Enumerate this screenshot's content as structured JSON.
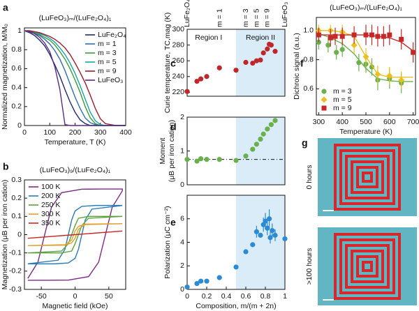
{
  "chart_data": [
    {
      "type": "line",
      "panel": "a",
      "title": "(LuFeO₃)ₘ/(LuFe₂O₄)₁",
      "xlabel": "Temperature, T (K)",
      "ylabel": "Normalized magnetization, M/M₀",
      "xlim": [
        0,
        400
      ],
      "xticks": [
        0,
        100,
        200,
        300,
        400
      ],
      "ylim": [
        0,
        1.03
      ],
      "yticks": [
        0,
        0.2,
        0.4,
        0.6,
        0.8,
        1
      ],
      "legend": "upper right",
      "x": [
        0,
        20,
        40,
        60,
        80,
        100,
        120,
        140,
        160,
        180,
        200,
        220,
        240,
        260,
        280,
        300,
        320,
        340,
        360,
        380,
        400
      ],
      "series": [
        {
          "name": "LuFe₂O₄",
          "color": "#1f2a6b",
          "values": [
            1,
            0.98,
            0.95,
            0.9,
            0.84,
            0.75,
            0.64,
            0.52,
            0.38,
            0.25,
            0.14,
            0.06,
            0.02,
            0,
            0,
            0,
            0,
            0,
            0,
            0,
            0
          ]
        },
        {
          "name": "m = 1",
          "color": "#2e6db4",
          "values": [
            1,
            0.99,
            0.97,
            0.95,
            0.91,
            0.86,
            0.79,
            0.7,
            0.58,
            0.44,
            0.3,
            0.18,
            0.08,
            0.03,
            0.01,
            0,
            0,
            0,
            0,
            0,
            0
          ]
        },
        {
          "name": "m = 3",
          "color": "#3a9a3a",
          "values": [
            1,
            0.99,
            0.98,
            0.96,
            0.93,
            0.9,
            0.85,
            0.78,
            0.7,
            0.6,
            0.48,
            0.35,
            0.2,
            0.08,
            0.02,
            0,
            0,
            0,
            0,
            0,
            0
          ]
        },
        {
          "name": "m = 5",
          "color": "#1aa3a3",
          "values": [
            1,
            1,
            0.99,
            0.97,
            0.95,
            0.92,
            0.88,
            0.82,
            0.75,
            0.66,
            0.55,
            0.42,
            0.28,
            0.14,
            0.05,
            0.01,
            0,
            0,
            0,
            0,
            0
          ]
        },
        {
          "name": "m = 9",
          "color": "#9e1b2a",
          "values": [
            1,
            1,
            0.99,
            0.98,
            0.96,
            0.94,
            0.91,
            0.87,
            0.82,
            0.75,
            0.66,
            0.56,
            0.45,
            0.32,
            0.18,
            0.07,
            0.02,
            0.01,
            0,
            0,
            0
          ]
        },
        {
          "name": "LuFeO₃",
          "color": "#5b2a86",
          "values": [
            1,
            0.99,
            0.97,
            0.93,
            0.87,
            0.78,
            0.62,
            0.38,
            0.01,
            0,
            0,
            0,
            0,
            0,
            0,
            0,
            0,
            0,
            0,
            0,
            0
          ]
        }
      ]
    },
    {
      "type": "line",
      "panel": "b",
      "title": "(LuFeO₃)₉/(LuFe₂O₄)₁",
      "xlabel": "Magnetic field (kOe)",
      "ylabel": "Magnetization (μB per iron cation)",
      "xlim": [
        -75,
        75
      ],
      "xticks": [
        -50,
        0,
        50
      ],
      "ylim": [
        -0.3,
        0.3
      ],
      "yticks": [
        -0.3,
        -0.2,
        -0.1,
        0,
        0.1,
        0.2,
        0.3
      ],
      "legend": "upper left",
      "series": [
        {
          "name": "100 K",
          "color": "#7b2a86",
          "x": [
            -70,
            -40,
            -10,
            20,
            35,
            45,
            55,
            70,
            70,
            40,
            10,
            -20,
            -35,
            -45,
            -55,
            -70
          ],
          "values": [
            -0.25,
            -0.25,
            -0.249,
            -0.23,
            -0.15,
            0,
            0.15,
            0.24,
            0.25,
            0.25,
            0.249,
            0.23,
            0.15,
            0,
            -0.15,
            -0.24
          ]
        },
        {
          "name": "200 K",
          "color": "#2a7ab8",
          "x": [
            -70,
            -30,
            -10,
            0,
            5,
            10,
            15,
            25,
            70,
            70,
            30,
            10,
            0,
            -5,
            -10,
            -15,
            -25,
            -70
          ],
          "values": [
            -0.16,
            -0.16,
            -0.155,
            -0.13,
            -0.08,
            0,
            0.08,
            0.14,
            0.16,
            0.16,
            0.16,
            0.155,
            0.13,
            0.08,
            0,
            -0.08,
            -0.14,
            -0.16
          ]
        },
        {
          "name": "250 K",
          "color": "#5aa33a",
          "x": [
            -70,
            -20,
            -5,
            0,
            5,
            10,
            20,
            70,
            70,
            20,
            5,
            0,
            -5,
            -10,
            -20,
            -70
          ],
          "values": [
            -0.1,
            -0.1,
            -0.09,
            -0.05,
            0,
            0.05,
            0.09,
            0.1,
            0.1,
            0.1,
            0.09,
            0.05,
            0,
            -0.05,
            -0.09,
            -0.1
          ]
        },
        {
          "name": "300 K",
          "color": "#e0a030",
          "x": [
            -70,
            -15,
            -5,
            0,
            2,
            5,
            15,
            70,
            70,
            15,
            5,
            0,
            -2,
            -5,
            -15,
            -70
          ],
          "values": [
            -0.06,
            -0.058,
            -0.045,
            -0.02,
            0,
            0.03,
            0.055,
            0.06,
            0.06,
            0.058,
            0.045,
            0.02,
            0,
            -0.03,
            -0.055,
            -0.06
          ]
        },
        {
          "name": "350 K",
          "color": "#c62828",
          "x": [
            -70,
            0,
            70,
            0,
            -70
          ],
          "values": [
            -0.02,
            0,
            0.02,
            0,
            -0.02
          ]
        }
      ]
    },
    {
      "type": "scatter",
      "panel": "c",
      "ylabel": "Curie temperature, TC,mag (K)",
      "color": "#c0272d",
      "xlim": [
        0,
        1
      ],
      "ylim": [
        215,
        300
      ],
      "yticks": [
        220,
        240,
        260,
        280,
        300
      ],
      "shade": [
        0.5,
        1
      ],
      "top_labels": [
        {
          "text": "LuFe₂O₄",
          "x": 0
        },
        {
          "text": "m = 1",
          "x": 0.333
        },
        {
          "text": "m = 3",
          "x": 0.6
        },
        {
          "text": "m = 5",
          "x": 0.714
        },
        {
          "text": "m = 9",
          "x": 0.818
        },
        {
          "text": "LuFeO₃",
          "x": 1
        }
      ],
      "regions": [
        {
          "text": "Region I",
          "x": 0.22
        },
        {
          "text": "Region II",
          "x": 0.75
        }
      ],
      "series": [
        {
          "x": [
            0,
            0.1,
            0.14,
            0.2,
            0.33,
            0.5,
            0.6,
            0.67,
            0.71,
            0.75,
            0.78,
            0.82,
            0.84,
            0.86,
            0.9
          ],
          "values": [
            221,
            234,
            237,
            240,
            251,
            248,
            258,
            257,
            260,
            261,
            270,
            275,
            281,
            280,
            272
          ]
        }
      ]
    },
    {
      "type": "scatter",
      "panel": "d",
      "ylabel": [
        "Moment",
        "(μB per iron cation)"
      ],
      "color": "#6ab04c",
      "xlim": [
        0,
        1
      ],
      "ylim": [
        0,
        2
      ],
      "yticks": [
        0,
        1,
        2
      ],
      "shade": [
        0.5,
        1
      ],
      "hline": 0.75,
      "series": [
        {
          "x": [
            0,
            0.1,
            0.14,
            0.2,
            0.33,
            0.5,
            0.6,
            0.67,
            0.71,
            0.75,
            0.78,
            0.82,
            0.86,
            0.9
          ],
          "values": [
            0.75,
            0.7,
            0.77,
            0.75,
            0.75,
            0.72,
            0.85,
            1.05,
            1.2,
            1.35,
            1.5,
            1.65,
            1.78,
            1.9
          ]
        }
      ]
    },
    {
      "type": "scatter",
      "panel": "e",
      "xlabel": "Composition, m/(m + 2n)",
      "ylabel": "Polarization (μC cm⁻²)",
      "color": "#2a8ad4",
      "xlim": [
        0,
        1
      ],
      "xticks": [
        0,
        0.2,
        0.4,
        0.6,
        0.8,
        1
      ],
      "ylim": [
        0,
        8
      ],
      "yticks": [
        0,
        2,
        4,
        6
      ],
      "shade": [
        0.5,
        1
      ],
      "series": [
        {
          "x": [
            0,
            0.1,
            0.14,
            0.2,
            0.33,
            0.5,
            0.6,
            0.67,
            0.71,
            0.75,
            0.78,
            0.8,
            0.82,
            0.84,
            0.85,
            0.87,
            0.9,
            1
          ],
          "values": [
            0.2,
            0.5,
            0.7,
            0.7,
            1,
            1.9,
            3.2,
            3.8,
            4.9,
            4.6,
            5.5,
            5.8,
            5.2,
            6,
            4.4,
            5,
            4.6,
            4.3
          ],
          "errors": [
            null,
            null,
            null,
            null,
            null,
            null,
            null,
            null,
            0.5,
            null,
            0.6,
            0.7,
            0.6,
            0.8,
            0.5,
            0.6,
            0.5,
            null
          ]
        }
      ]
    },
    {
      "type": "scatter",
      "panel": "f",
      "title": "(LuFeO₃)ₘ/(LuFe₂O₄)₁",
      "xlabel": "Temperature (K)",
      "ylabel": "Dichroic signal (a.u.)",
      "xlim": [
        290,
        710
      ],
      "xticks": [
        300,
        400,
        500,
        600,
        700
      ],
      "ylim": [
        0.42,
        1.09
      ],
      "yticks": [
        0.6,
        0.8,
        {
          "value": 1,
          "label": "1.0"
        }
      ],
      "legend": "lower left",
      "series": [
        {
          "name": "m = 3",
          "color": "#6ab04c",
          "marker": "circle",
          "x": [
            300,
            340,
            375,
            400,
            470,
            500,
            525,
            550,
            600,
            650
          ],
          "values": [
            0.92,
            0.9,
            0.85,
            0.87,
            0.78,
            0.77,
            0.75,
            0.66,
            0.67,
            0.64
          ],
          "errors": [
            0.05,
            0.05,
            0.05,
            0.05,
            0.06,
            0.06,
            0.06,
            0.07,
            0.07,
            0.07
          ],
          "fit": {
            "x": [
              300,
              350,
              400,
              450,
              500,
              550,
              600,
              650,
              700
            ],
            "values": [
              0.98,
              0.95,
              0.91,
              0.84,
              0.74,
              0.67,
              0.655,
              0.65,
              0.65
            ]
          }
        },
        {
          "name": "m = 5",
          "color": "#e8c020",
          "marker": "diamond",
          "x": [
            300,
            350,
            400,
            450,
            500,
            550,
            600,
            650
          ],
          "values": [
            1,
            1,
            0.99,
            0.9,
            0.82,
            0.7,
            0.69,
            0.66
          ],
          "errors": [
            0.04,
            0.04,
            0.05,
            0.06,
            0.06,
            0.06,
            0.06,
            0.06
          ],
          "fit": {
            "x": [
              300,
              350,
              400,
              450,
              500,
              550,
              600,
              650,
              700
            ],
            "values": [
              1,
              1,
              0.99,
              0.96,
              0.82,
              0.7,
              0.68,
              0.68,
              0.68
            ]
          }
        },
        {
          "name": "m = 9",
          "color": "#c62828",
          "marker": "square",
          "x": [
            300,
            350,
            370,
            400,
            450,
            500,
            525,
            550,
            575,
            600,
            650,
            700
          ],
          "values": [
            0.97,
            0.95,
            0.96,
            0.96,
            0.97,
            0.97,
            0.97,
            0.96,
            0.96,
            0.97,
            0.94,
            0.85
          ],
          "errors": [
            0.05,
            0.06,
            0.06,
            0.06,
            0.06,
            0.07,
            0.07,
            0.07,
            0.07,
            0.07,
            0.07,
            0.07
          ],
          "fit": {
            "x": [
              300,
              350,
              400,
              450,
              500,
              550,
              600,
              650,
              700
            ],
            "values": [
              0.97,
              0.97,
              0.97,
              0.97,
              0.97,
              0.96,
              0.95,
              0.92,
              0.86
            ]
          }
        }
      ]
    }
  ],
  "images": {
    "panel": "g",
    "labels": [
      "0 hours",
      ">100 hours"
    ]
  }
}
